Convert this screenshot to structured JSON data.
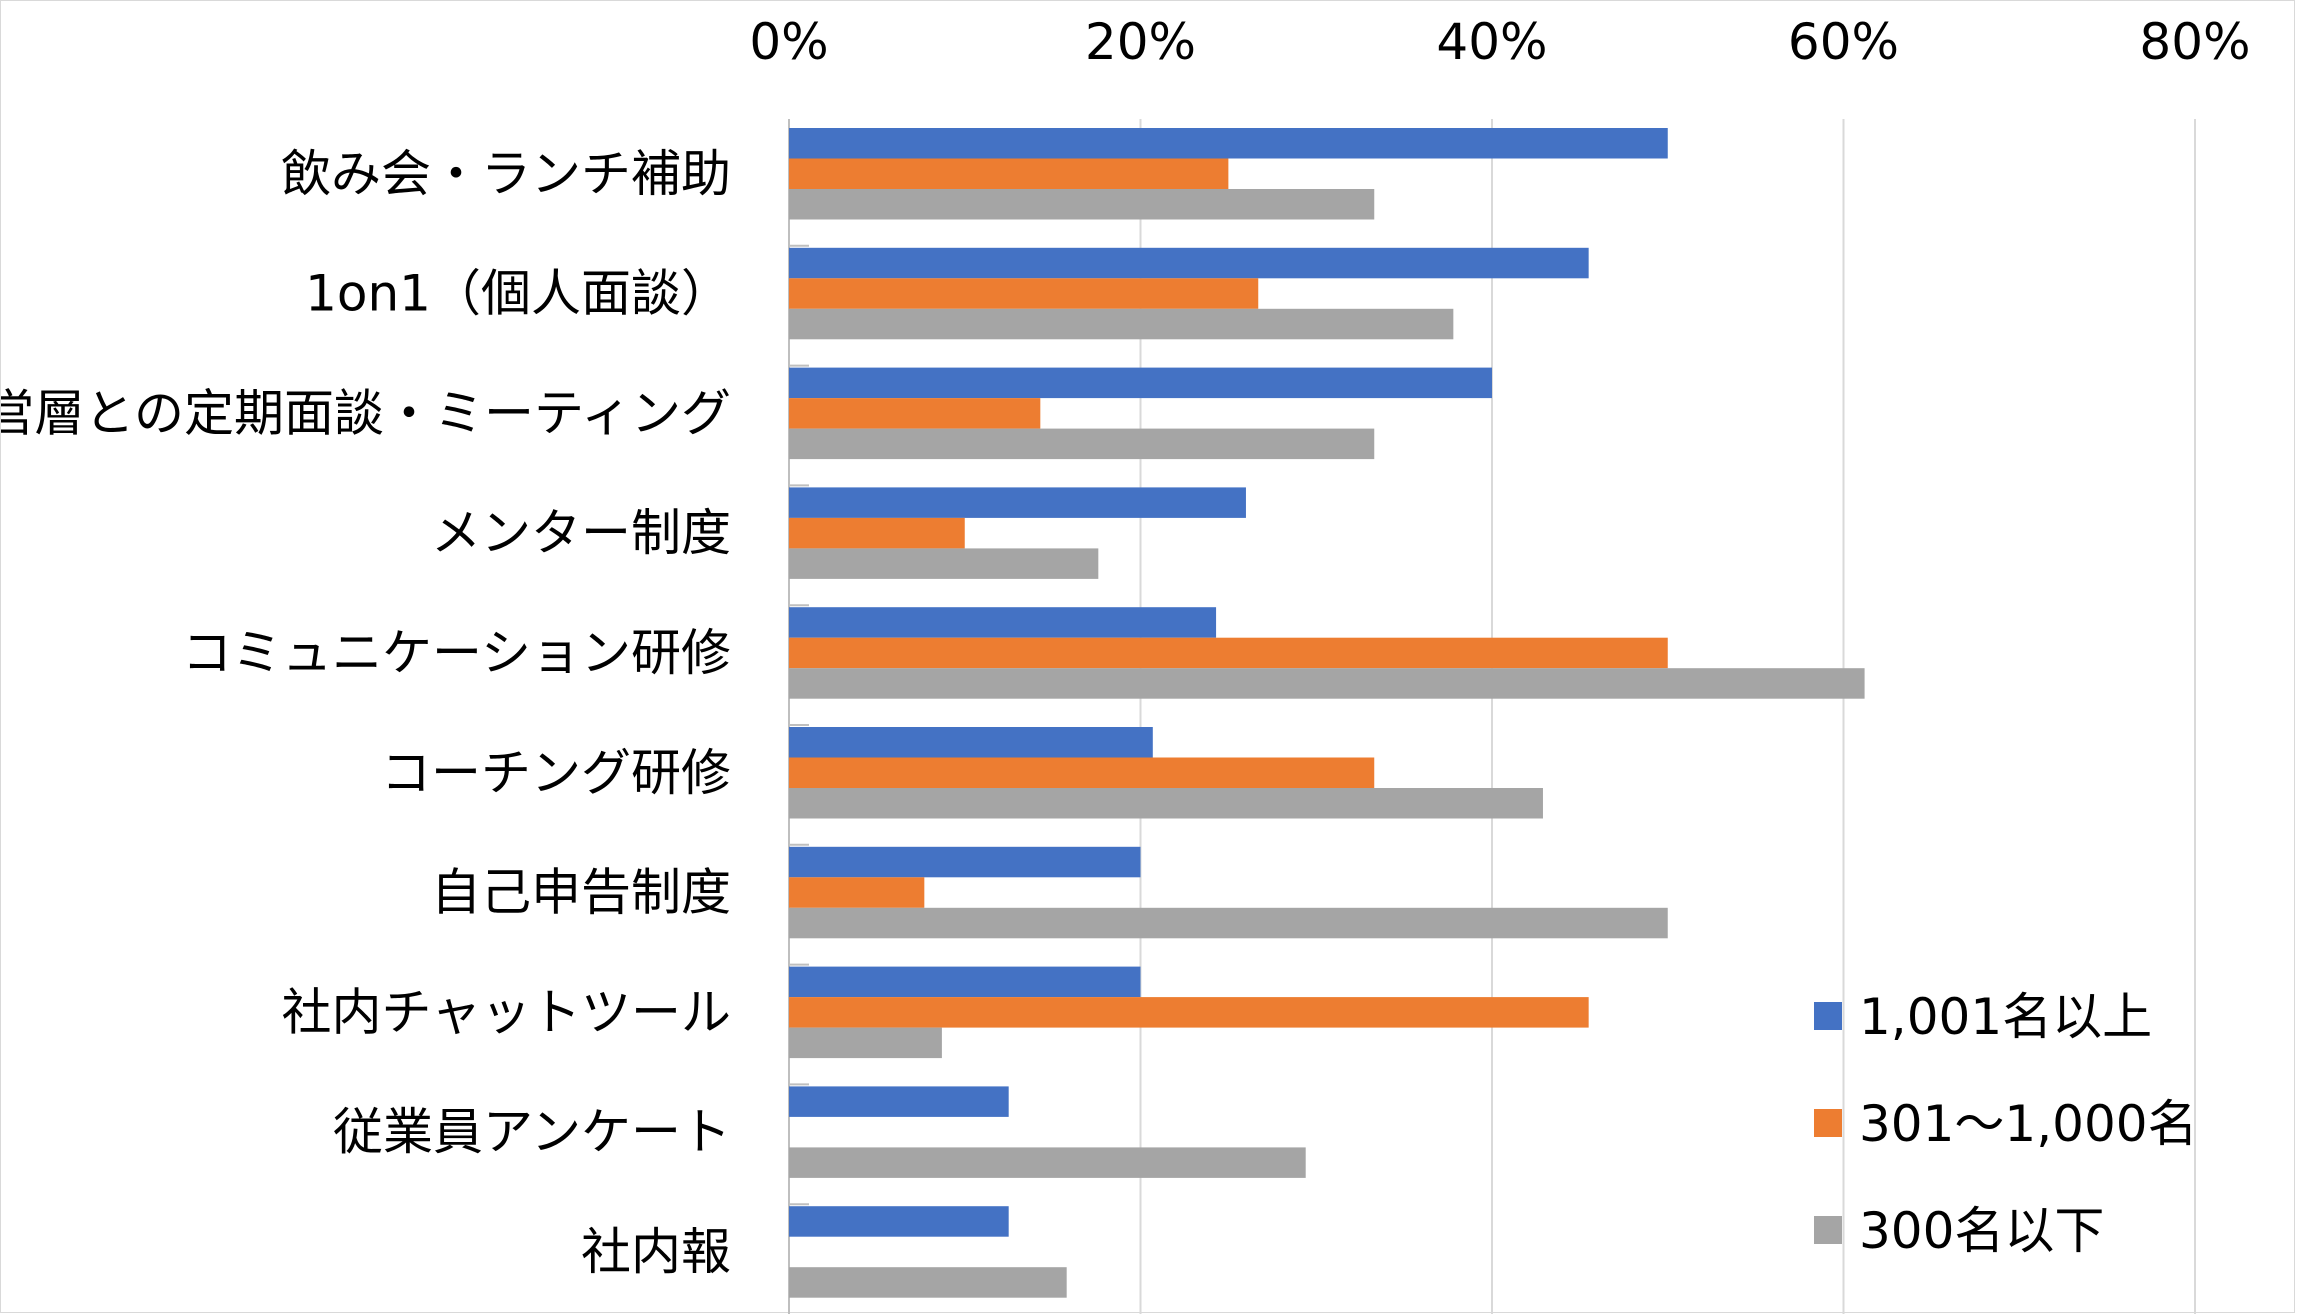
{
  "chart_data": {
    "type": "bar",
    "orientation": "horizontal",
    "title": "",
    "xlabel": "",
    "ylabel": "",
    "xlim": [
      0,
      80
    ],
    "x_ticks": [
      "0%",
      "20%",
      "40%",
      "60%",
      "80%"
    ],
    "grid": true,
    "legend_position": "bottom-right",
    "categories": [
      "飲み会・ランチ補助",
      "1on1（個人面談）",
      "経営層との定期面談・ミーティング",
      "メンター制度",
      "コミュニケーション研修",
      "コーチング研修",
      "自己申告制度",
      "社内チャットツール",
      "従業員アンケート",
      "社内報"
    ],
    "series": [
      {
        "name": "1,001名以上",
        "color": "#4472c4",
        "values": [
          50,
          45.5,
          40,
          26,
          24.3,
          20.7,
          20,
          20,
          12.5,
          12.5
        ]
      },
      {
        "name": "301～1,000名",
        "color": "#ed7d31",
        "values": [
          25,
          26.7,
          14.3,
          10,
          50,
          33.3,
          7.7,
          45.5,
          0,
          0
        ]
      },
      {
        "name": "300名以下",
        "color": "#a5a5a5",
        "values": [
          33.3,
          37.8,
          33.3,
          17.6,
          61.2,
          42.9,
          50,
          8.7,
          29.4,
          15.8
        ]
      }
    ]
  }
}
